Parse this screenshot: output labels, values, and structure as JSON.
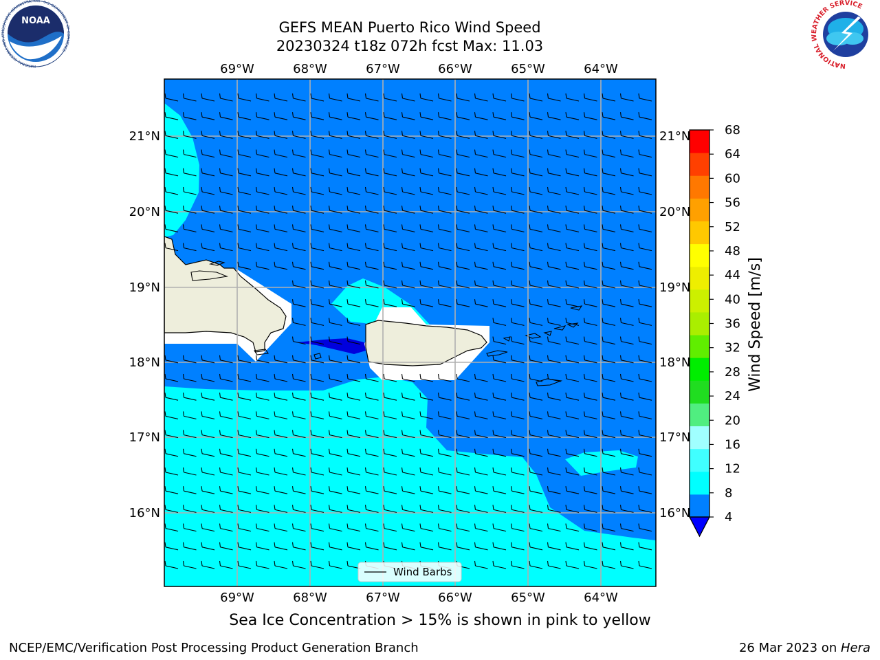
{
  "title_line1": "GEFS MEAN Puerto Rico Wind Speed",
  "title_line2": "20230324 t18z 072h fcst   Max: 11.03",
  "lon_labels": [
    "69°W",
    "68°W",
    "67°W",
    "66°W",
    "65°W",
    "64°W"
  ],
  "lat_labels": [
    "21°N",
    "20°N",
    "19°N",
    "18°N",
    "17°N",
    "16°N"
  ],
  "colorbar": {
    "label": "Wind Speed [m/s]",
    "ticks": [
      "4",
      "8",
      "12",
      "16",
      "20",
      "24",
      "28",
      "32",
      "36",
      "40",
      "44",
      "48",
      "52",
      "56",
      "60",
      "64",
      "68"
    ],
    "colors": [
      "#0080ff",
      "#00ffff",
      "#40ffff",
      "#a0ffff",
      "#50ee80",
      "#20dd20",
      "#00ee00",
      "#60ee00",
      "#aaee00",
      "#ccf000",
      "#eeee00",
      "#ffff00",
      "#ffc800",
      "#ffa000",
      "#ff7800",
      "#ff4000",
      "#ff0000"
    ],
    "under_color": "#0000ff"
  },
  "colors": {
    "ocean_low": "#0080ff",
    "ocean_calm": "#0000dd",
    "ocean_mid": "#00ffff",
    "land": "#eeeedc",
    "grid": "#b0b0b0"
  },
  "legend_label": "Wind Barbs",
  "caption": "Sea Ice Concentration > 15% is shown in pink to yellow",
  "footer_left": "NCEP/EMC/Verification Post Processing Product Generation Branch",
  "footer_right_date": "26 Mar 2023 on ",
  "footer_right_host": "Hera",
  "logos": {
    "noaa": "NOAA",
    "noaa_ring": "NATIONAL OCEANIC AND ATMOSPHERIC ADMINISTRATION · U.S. DEPARTMENT OF COMMERCE",
    "nws_ring": "NATIONAL WEATHER SERVICE"
  }
}
